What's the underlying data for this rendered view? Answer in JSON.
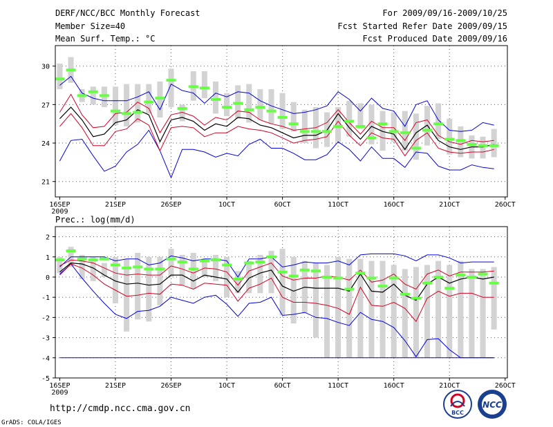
{
  "header": {
    "title": "DERF/NCC/BCC Monthly Forecast",
    "member_size": "Member Size=40",
    "variable": "Mean Surf. Temp.: °C",
    "period": "For 2009/09/16-2009/10/25",
    "start_date": "Fcst Started Refer Date 2009/09/15",
    "produced_date": "Fcst Produced Date 2009/09/16"
  },
  "footer": {
    "url": "http://cmdp.ncc.cma.gov.cn",
    "credit": "GrADS: COLA/IGES",
    "logo_bcc": "BCC",
    "logo_ncc": "NCC"
  },
  "colors": {
    "box": "#d3d3d3",
    "median": "#66ff44",
    "mean": "#000000",
    "inner_band": "#d40022",
    "outer_band": "#0000dd",
    "grid": "#555555"
  },
  "chart_data": [
    {
      "type": "line",
      "title": "",
      "xlabel": "",
      "ylabel": "",
      "x_tick_labels": [
        "16SEP",
        "21SEP",
        "26SEP",
        "1OCT",
        "6OCT",
        "11OCT",
        "16OCT",
        "21OCT",
        "26OCT"
      ],
      "x_tick_days": [
        0,
        5,
        10,
        15,
        20,
        25,
        30,
        35,
        40
      ],
      "x_sublabel": "2009",
      "xlim": [
        -0.4,
        40.2
      ],
      "ylim": [
        19.8,
        31.6
      ],
      "y_ticks": [
        21,
        24,
        27,
        30
      ],
      "grid": true,
      "days": [
        0,
        1,
        2,
        3,
        4,
        5,
        6,
        7,
        8,
        9,
        10,
        11,
        12,
        13,
        14,
        15,
        16,
        17,
        18,
        19,
        20,
        21,
        22,
        23,
        24,
        25,
        26,
        27,
        28,
        29,
        30,
        31,
        32,
        33,
        34,
        35,
        36,
        37,
        38,
        39
      ],
      "series": [
        {
          "name": "box_low",
          "values": [
            28.2,
            28.7,
            27.2,
            27.0,
            26.8,
            25.4,
            25.3,
            25.6,
            26.3,
            26.0,
            26.8,
            25.7,
            27.3,
            27.5,
            26.3,
            26.1,
            25.9,
            25.6,
            25.8,
            25.5,
            25.1,
            24.9,
            24.0,
            23.6,
            23.7,
            24.1,
            24.5,
            25.1,
            23.9,
            23.4,
            24.1,
            23.4,
            22.7,
            23.8,
            24.3,
            23.1,
            22.9,
            22.8,
            22.8,
            22.9
          ]
        },
        {
          "name": "box_high",
          "values": [
            30.2,
            30.7,
            28.2,
            28.4,
            28.4,
            28.4,
            28.6,
            28.6,
            28.6,
            28.8,
            29.8,
            27.0,
            29.6,
            29.6,
            28.8,
            27.9,
            28.5,
            28.6,
            28.2,
            28.2,
            27.9,
            27.2,
            26.6,
            26.8,
            26.4,
            26.8,
            27.3,
            27.1,
            27.0,
            26.5,
            26.4,
            26.5,
            26.3,
            26.9,
            27.1,
            25.9,
            25.3,
            24.6,
            24.5,
            25.1
          ]
        },
        {
          "name": "median",
          "values": [
            29.0,
            29.7,
            27.7,
            28.0,
            27.7,
            26.5,
            26.3,
            26.4,
            27.2,
            27.5,
            28.9,
            26.7,
            28.4,
            28.3,
            27.4,
            26.8,
            27.1,
            26.6,
            26.8,
            26.5,
            26.0,
            25.5,
            24.9,
            24.9,
            24.9,
            25.3,
            25.7,
            25.3,
            24.4,
            25.5,
            24.9,
            24.8,
            23.6,
            25.0,
            25.5,
            24.3,
            24.2,
            23.9,
            23.8,
            23.8
          ]
        },
        {
          "name": "mean",
          "values": [
            25.9,
            26.8,
            25.8,
            24.5,
            24.7,
            25.6,
            25.8,
            26.6,
            26.2,
            24.1,
            25.8,
            26.0,
            25.7,
            25.0,
            25.5,
            25.3,
            26.0,
            25.9,
            25.4,
            25.2,
            24.8,
            24.4,
            24.6,
            24.6,
            25.0,
            26.3,
            25.2,
            24.3,
            25.3,
            24.9,
            24.7,
            23.5,
            24.8,
            25.4,
            24.2,
            23.7,
            23.5,
            23.7,
            23.7,
            23.9
          ]
        },
        {
          "name": "mean_plus_sd",
          "values": [
            26.4,
            27.8,
            26.2,
            25.2,
            25.3,
            26.3,
            26.4,
            27.2,
            26.7,
            24.8,
            26.2,
            26.4,
            26.1,
            25.4,
            26.0,
            25.8,
            26.5,
            26.4,
            25.8,
            25.5,
            25.3,
            25.0,
            25.1,
            25.2,
            25.6,
            26.6,
            25.6,
            24.7,
            25.7,
            25.2,
            25.2,
            24.2,
            25.6,
            25.8,
            24.6,
            24.1,
            23.9,
            24.2,
            24.1,
            24.2
          ]
        },
        {
          "name": "mean_minus_sd",
          "values": [
            25.3,
            26.3,
            25.2,
            23.8,
            23.8,
            24.9,
            25.1,
            25.9,
            25.4,
            23.4,
            25.2,
            25.3,
            25.2,
            24.5,
            24.8,
            24.8,
            25.3,
            25.1,
            25.0,
            24.8,
            24.4,
            24.0,
            24.2,
            24.3,
            24.5,
            25.7,
            24.6,
            23.8,
            24.8,
            24.4,
            24.3,
            23.0,
            24.2,
            24.8,
            23.6,
            23.3,
            23.2,
            23.3,
            23.3,
            23.5
          ]
        },
        {
          "name": "max",
          "values": [
            28.5,
            29.2,
            27.9,
            27.5,
            27.3,
            27.3,
            27.3,
            27.6,
            28.0,
            26.6,
            28.6,
            28.1,
            27.9,
            27.1,
            27.9,
            27.6,
            28.0,
            27.9,
            27.3,
            26.9,
            26.6,
            26.3,
            26.4,
            26.6,
            26.9,
            28.0,
            27.4,
            26.5,
            27.5,
            26.7,
            26.5,
            25.3,
            27.0,
            27.3,
            25.8,
            25.0,
            24.9,
            25.0,
            25.6,
            25.4
          ]
        },
        {
          "name": "min",
          "values": [
            22.6,
            24.2,
            24.3,
            23.0,
            21.8,
            22.2,
            23.3,
            23.9,
            25.0,
            23.4,
            21.3,
            23.5,
            23.5,
            23.3,
            22.9,
            23.2,
            23.0,
            23.9,
            24.3,
            23.6,
            23.6,
            23.2,
            22.7,
            22.7,
            23.1,
            24.1,
            23.5,
            22.6,
            23.7,
            22.8,
            22.8,
            22.1,
            23.3,
            23.2,
            22.2,
            21.9,
            21.9,
            22.3,
            22.1,
            22.0
          ]
        }
      ]
    },
    {
      "type": "line",
      "title": "Prec.: log(mm/d)",
      "xlabel": "",
      "ylabel": "",
      "x_tick_labels": [
        "16SEP",
        "21SEP",
        "26SEP",
        "1OCT",
        "6OCT",
        "11OCT",
        "16OCT",
        "21OCT",
        "26OCT"
      ],
      "x_tick_days": [
        0,
        5,
        10,
        15,
        20,
        25,
        30,
        35,
        40
      ],
      "x_sublabel": "2009",
      "xlim": [
        -0.4,
        40.2
      ],
      "ylim": [
        -5,
        2.5
      ],
      "y_ticks": [
        -5,
        -4,
        -3,
        -2,
        -1,
        0,
        1,
        2
      ],
      "grid": true,
      "days": [
        0,
        1,
        2,
        3,
        4,
        5,
        6,
        7,
        8,
        9,
        10,
        11,
        12,
        13,
        14,
        15,
        16,
        17,
        18,
        19,
        20,
        21,
        22,
        23,
        24,
        25,
        26,
        27,
        28,
        29,
        30,
        31,
        32,
        33,
        34,
        35,
        36,
        37,
        38,
        39
      ],
      "series": [
        {
          "name": "box_low",
          "values": [
            0.2,
            0.5,
            -0.1,
            -0.2,
            0.0,
            -1.3,
            -2.7,
            -2.1,
            -2.2,
            -1.4,
            0.0,
            -0.4,
            -0.6,
            0.0,
            -0.2,
            -1.0,
            -0.8,
            -0.8,
            -0.8,
            -0.8,
            -1.9,
            -2.3,
            -1.8,
            -3.0,
            -4.0,
            -4.0,
            -4.0,
            -4.0,
            -4.0,
            -4.0,
            -4.0,
            -4.0,
            -4.0,
            -4.0,
            -4.0,
            -4.0,
            -4.0,
            -4.0,
            -4.0,
            -2.6
          ]
        },
        {
          "name": "box_high",
          "values": [
            1.0,
            1.5,
            1.1,
            1.0,
            0.7,
            1.0,
            0.9,
            1.2,
            1.0,
            1.0,
            1.4,
            1.1,
            1.2,
            0.9,
            1.1,
            1.0,
            0.3,
            0.8,
            1.1,
            1.3,
            1.4,
            1.0,
            0.8,
            0.7,
            0.6,
            1.0,
            0.9,
            0.9,
            0.8,
            0.8,
            0.6,
            0.4,
            0.5,
            0.6,
            0.8,
            0.6,
            0.8,
            0.4,
            0.4,
            0.5
          ]
        },
        {
          "name": "median",
          "values": [
            0.85,
            1.3,
            0.9,
            0.85,
            0.9,
            0.6,
            0.45,
            0.5,
            0.4,
            0.4,
            0.9,
            0.75,
            0.4,
            0.8,
            0.85,
            0.6,
            -0.1,
            0.7,
            0.75,
            1.0,
            0.25,
            0.05,
            0.35,
            0.3,
            0.0,
            -0.05,
            -0.6,
            0.2,
            -0.05,
            -0.45,
            -0.05,
            -0.85,
            -1.05,
            -0.3,
            0.0,
            -0.55,
            0.1,
            0.0,
            0.15,
            -0.3
          ]
        },
        {
          "name": "mean",
          "values": [
            0.25,
            0.7,
            0.65,
            0.45,
            0.1,
            -0.2,
            -0.35,
            -0.3,
            -0.4,
            -0.35,
            0.1,
            0.1,
            -0.2,
            0.1,
            0.0,
            -0.1,
            -0.75,
            -0.05,
            0.2,
            0.35,
            -0.45,
            -0.7,
            -0.5,
            -0.55,
            -0.55,
            -0.55,
            -0.7,
            0.15,
            -0.7,
            -0.75,
            -0.35,
            -0.9,
            -1.15,
            -0.35,
            0.0,
            -0.3,
            -0.1,
            0.0,
            -0.1,
            0.0
          ]
        },
        {
          "name": "mean_plus_sd",
          "values": [
            0.55,
            0.85,
            0.8,
            0.7,
            0.45,
            0.2,
            0.1,
            0.15,
            0.1,
            0.1,
            0.55,
            0.4,
            0.2,
            0.45,
            0.4,
            0.25,
            -0.4,
            0.3,
            0.5,
            0.7,
            0.05,
            -0.15,
            -0.05,
            -0.05,
            0.05,
            0.0,
            -0.15,
            0.35,
            -0.25,
            -0.15,
            0.15,
            -0.35,
            -0.6,
            0.15,
            0.35,
            0.05,
            0.25,
            0.25,
            0.25,
            0.3
          ]
        },
        {
          "name": "mean_minus_sd",
          "values": [
            0.1,
            0.65,
            0.45,
            0.1,
            -0.35,
            -0.65,
            -0.95,
            -0.9,
            -0.8,
            -0.85,
            -0.35,
            -0.4,
            -0.6,
            -0.3,
            -0.35,
            -0.4,
            -1.2,
            -0.55,
            -0.35,
            -0.05,
            -1.0,
            -1.25,
            -1.25,
            -1.3,
            -1.4,
            -1.55,
            -1.85,
            -0.5,
            -1.4,
            -1.45,
            -1.25,
            -1.55,
            -2.2,
            -1.05,
            -0.7,
            -0.95,
            -0.8,
            -0.8,
            -1.0,
            -1.0
          ]
        },
        {
          "name": "max",
          "values": [
            0.5,
            1.0,
            1.0,
            1.0,
            1.0,
            0.8,
            0.9,
            0.9,
            0.6,
            0.7,
            1.05,
            0.95,
            0.8,
            0.9,
            0.9,
            0.8,
            0.0,
            0.9,
            0.9,
            1.0,
            0.5,
            0.6,
            0.75,
            0.7,
            0.7,
            0.8,
            0.6,
            1.1,
            1.15,
            1.15,
            1.15,
            1.05,
            0.8,
            1.1,
            1.1,
            0.95,
            0.7,
            0.75,
            0.75,
            0.75
          ]
        },
        {
          "name": "min",
          "values": [
            0.15,
            0.65,
            -0.05,
            -0.7,
            -1.3,
            -1.85,
            -2.05,
            -1.7,
            -1.65,
            -1.45,
            -1.0,
            -1.15,
            -1.3,
            -1.0,
            -0.9,
            -1.35,
            -1.95,
            -1.3,
            -1.25,
            -1.0,
            -1.9,
            -1.85,
            -1.75,
            -2.0,
            -2.05,
            -2.25,
            -2.4,
            -1.75,
            -2.1,
            -2.2,
            -2.5,
            -3.15,
            -3.95,
            -3.1,
            -3.05,
            -3.6,
            -4.0,
            -4.0,
            -4.0,
            -4.0
          ]
        },
        {
          "name": "floor",
          "values": [
            -4.0,
            -4.0,
            -4.0,
            -4.0,
            -4.0,
            -4.0,
            -4.0,
            -4.0,
            -4.0,
            -4.0,
            -4.0,
            -4.0,
            -4.0,
            -4.0,
            -4.0,
            -4.0,
            -4.0,
            -4.0,
            -4.0,
            -4.0,
            -4.0,
            -4.0,
            -4.0,
            -4.0,
            -4.0,
            -4.0,
            -4.0,
            -4.0,
            -4.0,
            -4.0,
            -4.0,
            -4.0,
            -4.0,
            -4.0,
            -4.0,
            -4.0,
            -4.0,
            -4.0,
            -4.0,
            -4.0
          ]
        }
      ]
    }
  ]
}
